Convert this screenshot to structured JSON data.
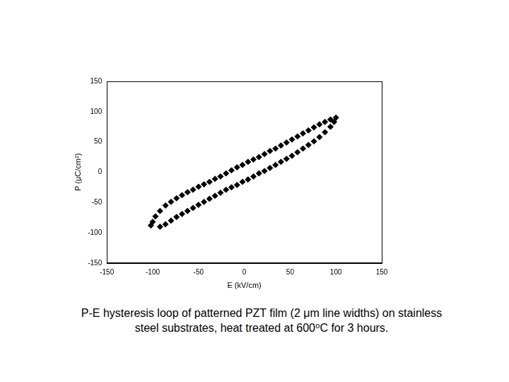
{
  "chart_data": {
    "type": "scatter",
    "caption": "P-E hysteresis loop of patterned PZT film (2 μm line widths) on stainless steel substrates, heat treated at 600⁰C for 3 hours.",
    "x_label": "E (kV/cm)",
    "y_label": "P (μC/cm²)",
    "color": "#000000",
    "marker": "diamond",
    "grid": false,
    "xlim": [
      -150,
      150
    ],
    "xticks": [
      -150,
      -100,
      -50,
      0,
      50,
      100,
      150
    ],
    "ylim": [
      -150,
      150
    ],
    "yticks": [
      -150,
      -100,
      -50,
      0,
      50,
      100,
      150
    ],
    "x": [
      100,
      94,
      88,
      82,
      76,
      70,
      64,
      58,
      52,
      46,
      40,
      34,
      28,
      22,
      16,
      10,
      4,
      -2,
      -8,
      -14,
      -20,
      -26,
      -32,
      -38,
      -44,
      -50,
      -56,
      -62,
      -68,
      -74,
      -80,
      -86,
      -92,
      -97,
      -100,
      -102,
      -92,
      -86,
      -80,
      -74,
      -68,
      -62,
      -56,
      -50,
      -44,
      -38,
      -32,
      -26,
      -20,
      -14,
      -8,
      -2,
      4,
      10,
      16,
      22,
      28,
      34,
      40,
      46,
      52,
      58,
      64,
      70,
      76,
      82,
      88,
      94,
      98
    ],
    "values": [
      90,
      87,
      83,
      79,
      74,
      69,
      64,
      59,
      54,
      49,
      44,
      39,
      35,
      30,
      25,
      21,
      17,
      12,
      8,
      3,
      -2,
      -7,
      -11,
      -16,
      -20,
      -24,
      -29,
      -33,
      -38,
      -43,
      -49,
      -55,
      -64,
      -73,
      -82,
      -88,
      -90,
      -86,
      -80,
      -74,
      -69,
      -64,
      -59,
      -54,
      -49,
      -44,
      -39,
      -34,
      -29,
      -25,
      -21,
      -16,
      -12,
      -7,
      -2,
      2,
      7,
      12,
      17,
      22,
      27,
      33,
      39,
      45,
      51,
      58,
      66,
      75,
      83
    ]
  }
}
